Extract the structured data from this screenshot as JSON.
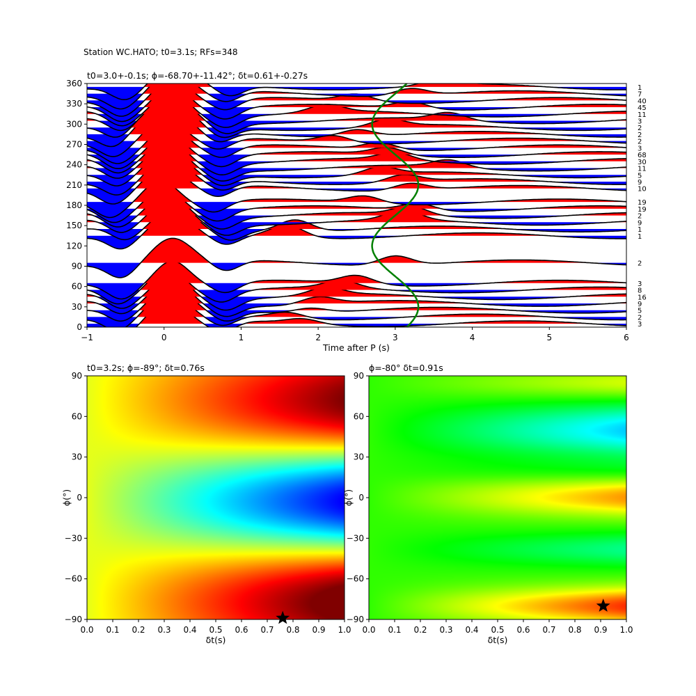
{
  "figure": {
    "suptitle": "Station WC.HATO; t0=3.1s; RFs=348"
  },
  "chart_data": [
    {
      "type": "line",
      "panel": "receiver-function-gather",
      "title": "t0=3.0+-0.1s; ϕ=-68.70+-11.42°; δt=0.61+-0.27s",
      "xlabel": "Time after P (s)",
      "ylabel": "",
      "xlim": [
        -1,
        6
      ],
      "ylim": [
        0,
        360
      ],
      "xticks": [
        -1,
        0,
        1,
        2,
        3,
        4,
        5,
        6
      ],
      "yticks": [
        0,
        30,
        60,
        90,
        120,
        150,
        180,
        210,
        240,
        270,
        300,
        330,
        360
      ],
      "fill_positive_color": "#ff0000",
      "fill_negative_color": "#0000ff",
      "trace_color": "#000000",
      "model_curve_color": "#008000",
      "traces": [
        {
          "baz": 5,
          "count": "3",
          "amp": 1.0,
          "t1": 0.05,
          "w1": 0.3,
          "a2": 0.2,
          "t2": 1.8
        },
        {
          "baz": 15,
          "count": "2",
          "amp": 1.0,
          "t1": 0.05,
          "w1": 0.3,
          "a2": 0.25,
          "t2": 1.6
        },
        {
          "baz": 25,
          "count": "5",
          "amp": 1.0,
          "t1": 0.1,
          "w1": 0.3,
          "a2": 0.2,
          "t2": 1.9
        },
        {
          "baz": 35,
          "count": "9",
          "amp": 1.0,
          "t1": 0.1,
          "w1": 0.3,
          "a2": 0.3,
          "t2": 2.0
        },
        {
          "baz": 45,
          "count": "16",
          "amp": 1.0,
          "t1": 0.1,
          "w1": 0.3,
          "a2": 0.3,
          "t2": 2.1
        },
        {
          "baz": 55,
          "count": "8",
          "amp": 1.0,
          "t1": 0.05,
          "w1": 0.3,
          "a2": 0.3,
          "t2": 2.3
        },
        {
          "baz": 65,
          "count": "3",
          "amp": 1.0,
          "t1": 0.1,
          "w1": 0.3,
          "a2": 0.35,
          "t2": 2.5
        },
        {
          "baz": 95,
          "count": "2",
          "amp": 1.0,
          "t1": 0.1,
          "w1": 0.35,
          "a2": 0.4,
          "t2": 3.0
        },
        {
          "baz": 135,
          "count": "1",
          "amp": 0.9,
          "t1": 0.1,
          "w1": 0.3,
          "a2": 0.5,
          "t2": 1.6
        },
        {
          "baz": 145,
          "count": "1",
          "amp": 0.9,
          "t1": 0.15,
          "w1": 0.3,
          "a2": 0.5,
          "t2": 1.7
        },
        {
          "baz": 155,
          "count": "9",
          "amp": 1.0,
          "t1": 0.1,
          "w1": 0.3,
          "a2": 0.4,
          "t2": 3.1
        },
        {
          "baz": 165,
          "count": "2",
          "amp": 1.0,
          "t1": 0.05,
          "w1": 0.3,
          "a2": 0.35,
          "t2": 3.2
        },
        {
          "baz": 175,
          "count": "19",
          "amp": 1.0,
          "t1": 0.0,
          "w1": 0.3,
          "a2": 0.3,
          "t2": 3.3
        },
        {
          "baz": 185,
          "count": "19",
          "amp": 1.0,
          "t1": -0.05,
          "w1": 0.3,
          "a2": 0.3,
          "t2": 2.6
        },
        {
          "baz": 205,
          "count": "10",
          "amp": 1.0,
          "t1": 0.0,
          "w1": 0.3,
          "a2": 0.3,
          "t2": 3.2
        },
        {
          "baz": 215,
          "count": "9",
          "amp": 1.0,
          "t1": 0.05,
          "w1": 0.3,
          "a2": 0.3,
          "t2": 3.1
        },
        {
          "baz": 225,
          "count": "5",
          "amp": 1.0,
          "t1": 0.05,
          "w1": 0.3,
          "a2": 0.3,
          "t2": 2.8
        },
        {
          "baz": 235,
          "count": "11",
          "amp": 1.0,
          "t1": 0.05,
          "w1": 0.3,
          "a2": 0.3,
          "t2": 3.7
        },
        {
          "baz": 245,
          "count": "30",
          "amp": 1.0,
          "t1": 0.05,
          "w1": 0.3,
          "a2": 0.3,
          "t2": 3.0
        },
        {
          "baz": 255,
          "count": "68",
          "amp": 1.0,
          "t1": 0.05,
          "w1": 0.3,
          "a2": 0.3,
          "t2": 2.9
        },
        {
          "baz": 265,
          "count": "3",
          "amp": 1.0,
          "t1": 0.05,
          "w1": 0.3,
          "a2": 0.3,
          "t2": 2.8
        },
        {
          "baz": 275,
          "count": "2",
          "amp": 1.0,
          "t1": 0.0,
          "w1": 0.3,
          "a2": 0.3,
          "t2": 2.2
        },
        {
          "baz": 285,
          "count": "2",
          "amp": 1.0,
          "t1": 0.0,
          "w1": 0.4,
          "a2": 0.3,
          "t2": 2.5
        },
        {
          "baz": 295,
          "count": "2",
          "amp": 1.0,
          "t1": 0.05,
          "w1": 0.4,
          "a2": 0.3,
          "t2": 2.9
        },
        {
          "baz": 305,
          "count": "3",
          "amp": 1.0,
          "t1": 0.1,
          "w1": 0.35,
          "a2": 0.3,
          "t2": 3.7
        },
        {
          "baz": 315,
          "count": "11",
          "amp": 1.0,
          "t1": 0.1,
          "w1": 0.3,
          "a2": 0.3,
          "t2": 2.1
        },
        {
          "baz": 325,
          "count": "45",
          "amp": 1.0,
          "t1": 0.1,
          "w1": 0.3,
          "a2": 0.3,
          "t2": 3.2
        },
        {
          "baz": 335,
          "count": "40",
          "amp": 1.0,
          "t1": 0.1,
          "w1": 0.3,
          "a2": 0.3,
          "t2": 2.5
        },
        {
          "baz": 345,
          "count": "7",
          "amp": 1.0,
          "t1": 0.1,
          "w1": 0.3,
          "a2": 0.3,
          "t2": 3.2
        },
        {
          "baz": 355,
          "count": "1",
          "amp": 1.0,
          "t1": 0.15,
          "w1": 0.3,
          "a2": 0.3,
          "t2": 3.6
        }
      ],
      "model_curve": {
        "center": 3.0,
        "amplitude": 0.3,
        "phase_deg": 30
      }
    },
    {
      "type": "heatmap",
      "panel": "energy-map-left",
      "title": "t0=3.2s; ϕ=-89°; δt=0.76s",
      "xlabel": "δt(s)",
      "ylabel": "ϕ(°)",
      "xlim": [
        0.0,
        1.0
      ],
      "ylim": [
        -90,
        90
      ],
      "xticks": [
        "0.0",
        "0.1",
        "0.2",
        "0.3",
        "0.4",
        "0.5",
        "0.6",
        "0.7",
        "0.8",
        "0.9",
        "1.0"
      ],
      "yticks": [
        90,
        60,
        30,
        0,
        -30,
        -60,
        -90
      ],
      "colormap": "hot-reversed",
      "best": {
        "dt": 0.76,
        "phi": -89
      },
      "marker": "star"
    },
    {
      "type": "heatmap",
      "panel": "energy-map-right",
      "title": "ϕ=-80° δt=0.91s",
      "xlabel": "δt(s)",
      "ylabel": "ϕ(°)",
      "xlim": [
        0.0,
        1.0
      ],
      "ylim": [
        -90,
        90
      ],
      "xticks": [
        "0.0",
        "0.1",
        "0.2",
        "0.3",
        "0.4",
        "0.5",
        "0.6",
        "0.7",
        "0.8",
        "0.9",
        "1.0"
      ],
      "yticks": [
        90,
        60,
        30,
        0,
        -30,
        -60,
        -90
      ],
      "colormap": "hsv",
      "best": {
        "dt": 0.91,
        "phi": -80
      },
      "marker": "star"
    }
  ]
}
